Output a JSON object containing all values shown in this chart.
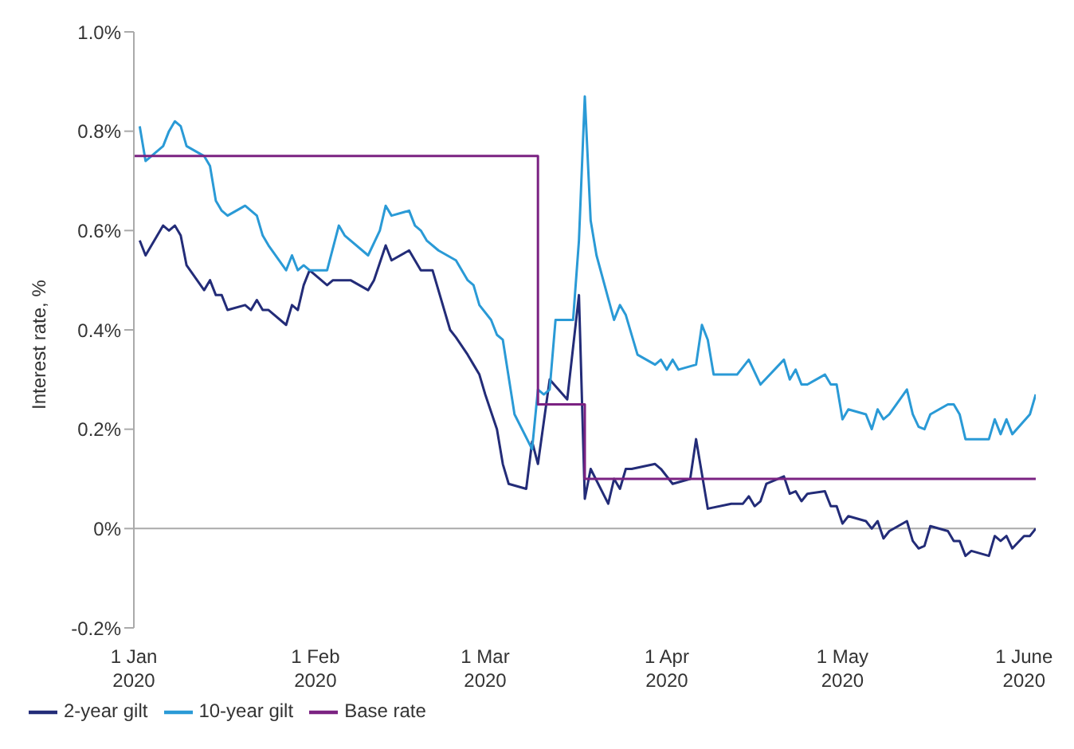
{
  "chart_data": {
    "type": "line",
    "ylabel": "Interest rate, %",
    "xlim": [
      "2020-01-01",
      "2020-06-03"
    ],
    "xticks": [
      {
        "value": "2020-01-01",
        "label": "1 Jan\n2020"
      },
      {
        "value": "2020-02-01",
        "label": "1 Feb\n2020"
      },
      {
        "value": "2020-03-01",
        "label": "1 Mar\n2020"
      },
      {
        "value": "2020-04-01",
        "label": "1 Apr\n2020"
      },
      {
        "value": "2020-05-01",
        "label": "1 May\n2020"
      },
      {
        "value": "2020-06-01",
        "label": "1 June\n2020"
      }
    ],
    "ylim": [
      -0.2,
      1.0
    ],
    "yticks": [
      {
        "value": -0.2,
        "label": "-0.2%"
      },
      {
        "value": 0,
        "label": "0%"
      },
      {
        "value": 0.2,
        "label": "0.2%"
      },
      {
        "value": 0.4,
        "label": "0.4%"
      },
      {
        "value": 0.6,
        "label": "0.6%"
      },
      {
        "value": 0.8,
        "label": "0.8%"
      },
      {
        "value": 1.0,
        "label": "1.0%"
      }
    ],
    "legend": "bottom left",
    "line_style": "solid",
    "marker": "none",
    "series": [
      {
        "name": "2-year gilt",
        "color": "#232c78",
        "x": [
          "2020-01-02",
          "2020-01-03",
          "2020-01-06",
          "2020-01-07",
          "2020-01-08",
          "2020-01-09",
          "2020-01-10",
          "2020-01-13",
          "2020-01-14",
          "2020-01-15",
          "2020-01-16",
          "2020-01-17",
          "2020-01-20",
          "2020-01-21",
          "2020-01-22",
          "2020-01-23",
          "2020-01-24",
          "2020-01-27",
          "2020-01-28",
          "2020-01-29",
          "2020-01-30",
          "2020-01-31",
          "2020-02-03",
          "2020-02-04",
          "2020-02-07",
          "2020-02-10",
          "2020-02-11",
          "2020-02-13",
          "2020-02-14",
          "2020-02-17",
          "2020-02-18",
          "2020-02-19",
          "2020-02-21",
          "2020-02-24",
          "2020-02-25",
          "2020-02-27",
          "2020-02-28",
          "2020-02-29",
          "2020-03-01",
          "2020-03-03",
          "2020-03-04",
          "2020-03-05",
          "2020-03-08",
          "2020-03-09",
          "2020-03-10",
          "2020-03-12",
          "2020-03-15",
          "2020-03-17",
          "2020-03-18",
          "2020-03-19",
          "2020-03-22",
          "2020-03-23",
          "2020-03-24",
          "2020-03-25",
          "2020-03-26",
          "2020-03-30",
          "2020-03-31",
          "2020-04-02",
          "2020-04-05",
          "2020-04-06",
          "2020-04-08",
          "2020-04-12",
          "2020-04-14",
          "2020-04-15",
          "2020-04-16",
          "2020-04-17",
          "2020-04-18",
          "2020-04-21",
          "2020-04-22",
          "2020-04-23",
          "2020-04-24",
          "2020-04-25",
          "2020-04-28",
          "2020-04-29",
          "2020-04-30",
          "2020-05-01",
          "2020-05-02",
          "2020-05-05",
          "2020-05-06",
          "2020-05-07",
          "2020-05-08",
          "2020-05-09",
          "2020-05-12",
          "2020-05-13",
          "2020-05-14",
          "2020-05-15",
          "2020-05-16",
          "2020-05-19",
          "2020-05-20",
          "2020-05-21",
          "2020-05-22",
          "2020-05-23",
          "2020-05-26",
          "2020-05-27",
          "2020-05-28",
          "2020-05-29",
          "2020-05-30",
          "2020-06-01",
          "2020-06-02",
          "2020-06-03"
        ],
        "values": [
          0.58,
          0.55,
          0.61,
          0.6,
          0.61,
          0.59,
          0.53,
          0.48,
          0.5,
          0.47,
          0.47,
          0.44,
          0.45,
          0.44,
          0.46,
          0.44,
          0.44,
          0.41,
          0.45,
          0.44,
          0.49,
          0.52,
          0.49,
          0.5,
          0.5,
          0.48,
          0.5,
          0.57,
          0.54,
          0.56,
          0.54,
          0.52,
          0.52,
          0.4,
          0.385,
          0.35,
          0.33,
          0.31,
          0.27,
          0.2,
          0.13,
          0.09,
          0.08,
          0.175,
          0.13,
          0.3,
          0.26,
          0.47,
          0.06,
          0.12,
          0.05,
          0.1,
          0.08,
          0.12,
          0.12,
          0.13,
          0.12,
          0.09,
          0.1,
          0.18,
          0.04,
          0.05,
          0.05,
          0.065,
          0.045,
          0.055,
          0.09,
          0.105,
          0.07,
          0.075,
          0.055,
          0.07,
          0.075,
          0.045,
          0.045,
          0.01,
          0.025,
          0.015,
          0.0,
          0.015,
          -0.02,
          -0.005,
          0.015,
          -0.025,
          -0.04,
          -0.035,
          0.005,
          -0.005,
          -0.025,
          -0.025,
          -0.055,
          -0.045,
          -0.055,
          -0.015,
          -0.025,
          -0.015,
          -0.04,
          -0.015,
          -0.015,
          0.0
        ]
      },
      {
        "name": "10-year gilt",
        "color": "#2a9ad6",
        "x": [
          "2020-01-02",
          "2020-01-03",
          "2020-01-06",
          "2020-01-07",
          "2020-01-08",
          "2020-01-09",
          "2020-01-10",
          "2020-01-13",
          "2020-01-14",
          "2020-01-15",
          "2020-01-16",
          "2020-01-17",
          "2020-01-20",
          "2020-01-22",
          "2020-01-23",
          "2020-01-24",
          "2020-01-27",
          "2020-01-28",
          "2020-01-29",
          "2020-01-30",
          "2020-01-31",
          "2020-02-03",
          "2020-02-05",
          "2020-02-06",
          "2020-02-10",
          "2020-02-12",
          "2020-02-13",
          "2020-02-14",
          "2020-02-17",
          "2020-02-18",
          "2020-02-19",
          "2020-02-20",
          "2020-02-22",
          "2020-02-25",
          "2020-02-27",
          "2020-02-28",
          "2020-02-29",
          "2020-03-02",
          "2020-03-03",
          "2020-03-04",
          "2020-03-06",
          "2020-03-09",
          "2020-03-10",
          "2020-03-11",
          "2020-03-12",
          "2020-03-13",
          "2020-03-16",
          "2020-03-17",
          "2020-03-18",
          "2020-03-19",
          "2020-03-20",
          "2020-03-23",
          "2020-03-24",
          "2020-03-25",
          "2020-03-27",
          "2020-03-30",
          "2020-03-31",
          "2020-04-01",
          "2020-04-02",
          "2020-04-03",
          "2020-04-06",
          "2020-04-07",
          "2020-04-08",
          "2020-04-09",
          "2020-04-13",
          "2020-04-15",
          "2020-04-17",
          "2020-04-21",
          "2020-04-22",
          "2020-04-23",
          "2020-04-24",
          "2020-04-25",
          "2020-04-28",
          "2020-04-29",
          "2020-04-30",
          "2020-05-01",
          "2020-05-02",
          "2020-05-05",
          "2020-05-06",
          "2020-05-07",
          "2020-05-08",
          "2020-05-09",
          "2020-05-12",
          "2020-05-13",
          "2020-05-14",
          "2020-05-15",
          "2020-05-16",
          "2020-05-19",
          "2020-05-20",
          "2020-05-21",
          "2020-05-22",
          "2020-05-26",
          "2020-05-27",
          "2020-05-28",
          "2020-05-29",
          "2020-05-30",
          "2020-06-02",
          "2020-06-03"
        ],
        "values": [
          0.81,
          0.74,
          0.77,
          0.8,
          0.82,
          0.81,
          0.77,
          0.75,
          0.73,
          0.66,
          0.64,
          0.63,
          0.65,
          0.63,
          0.59,
          0.57,
          0.52,
          0.55,
          0.52,
          0.53,
          0.52,
          0.52,
          0.61,
          0.59,
          0.55,
          0.6,
          0.65,
          0.63,
          0.64,
          0.61,
          0.6,
          0.58,
          0.56,
          0.54,
          0.5,
          0.49,
          0.45,
          0.42,
          0.39,
          0.38,
          0.23,
          0.16,
          0.28,
          0.27,
          0.28,
          0.42,
          0.42,
          0.58,
          0.87,
          0.62,
          0.55,
          0.42,
          0.45,
          0.43,
          0.35,
          0.33,
          0.34,
          0.32,
          0.34,
          0.32,
          0.33,
          0.41,
          0.38,
          0.31,
          0.31,
          0.34,
          0.29,
          0.34,
          0.3,
          0.32,
          0.29,
          0.29,
          0.31,
          0.29,
          0.29,
          0.22,
          0.24,
          0.23,
          0.2,
          0.24,
          0.22,
          0.23,
          0.28,
          0.23,
          0.205,
          0.2,
          0.23,
          0.25,
          0.25,
          0.23,
          0.18,
          0.18,
          0.22,
          0.19,
          0.22,
          0.19,
          0.23,
          0.27
        ]
      },
      {
        "name": "Base rate",
        "type": "step",
        "color": "#7b2282",
        "x": [
          "2020-01-01",
          "2020-03-10",
          "2020-03-18",
          "2020-06-03"
        ],
        "values": [
          0.75,
          0.25,
          0.1,
          0.1
        ]
      }
    ]
  }
}
